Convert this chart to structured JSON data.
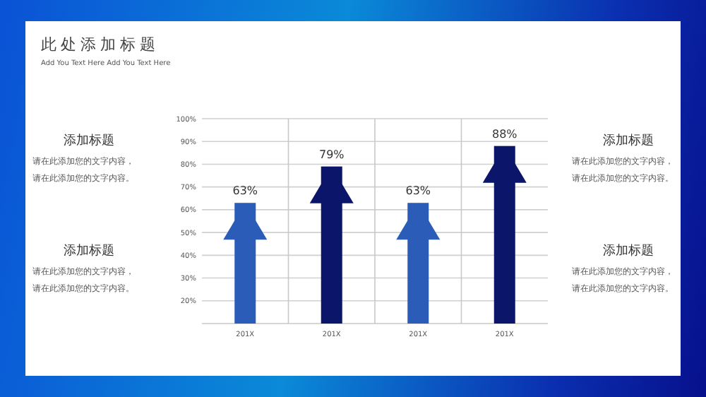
{
  "chart_data": {
    "type": "bar",
    "title": "此处添加标题",
    "subtitle": "Add You Text Here Add You Text Here",
    "categories": [
      "201X",
      "201X",
      "201X",
      "201X"
    ],
    "values": [
      63,
      79,
      63,
      88
    ],
    "colors": [
      "#2a5cb8",
      "#0b1569",
      "#2a5cb8",
      "#0b1569"
    ],
    "value_labels": [
      "63%",
      "79%",
      "63%",
      "88%"
    ],
    "ylim": [
      10,
      100
    ],
    "yticks": [
      {
        "value": 20,
        "label": "20%"
      },
      {
        "value": 30,
        "label": "30%"
      },
      {
        "value": 40,
        "label": "40%"
      },
      {
        "value": 50,
        "label": "50%"
      },
      {
        "value": 60,
        "label": "60%"
      },
      {
        "value": 70,
        "label": "70%"
      },
      {
        "value": 80,
        "label": "80%"
      },
      {
        "value": 90,
        "label": "90%"
      },
      {
        "value": 100,
        "label": "100%"
      }
    ],
    "grid": true,
    "annotations": [
      "添加标题",
      "请在此添加您的文字内容，",
      "请在此添加您的文字内容。",
      "添加标题",
      "请在此添加您的文字内容，",
      "请在此添加您的文字内容。",
      "添加标题",
      "请在此添加您的文字内容，",
      "请在此添加您的文字内容。",
      "添加标题",
      "请在此添加您的文字内容，",
      "请在此添加您的文字内容。"
    ]
  }
}
